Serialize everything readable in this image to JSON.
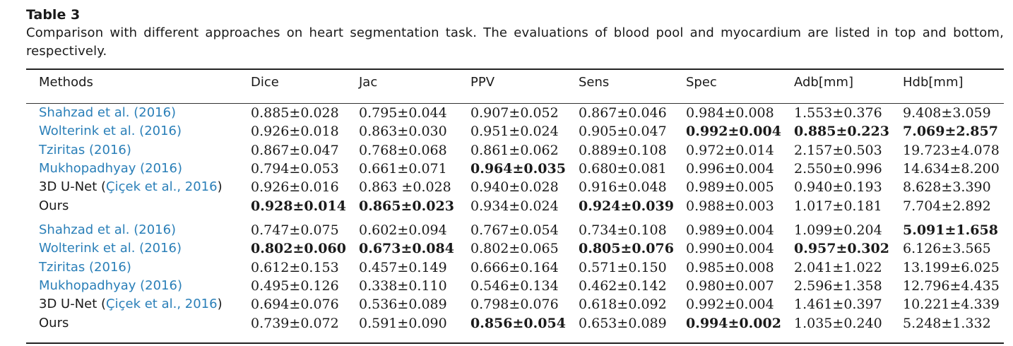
{
  "table": {
    "title": "Table 3",
    "caption": "Comparison with different approaches on heart segmentation task. The evaluations of blood pool and myocardium are listed in top and bottom, respectively.",
    "headers": [
      "Methods",
      "Dice",
      "Jac",
      "PPV",
      "Sens",
      "Spec",
      "Adb[mm]",
      "Hdb[mm]"
    ],
    "blood_pool": [
      {
        "method": "Shahzad et al. (2016)",
        "values": [
          "0.885±0.028",
          "0.795±0.044",
          "0.907±0.052",
          "0.867±0.046",
          "0.984±0.008",
          "1.553±0.376",
          "9.408±3.059"
        ],
        "bold": []
      },
      {
        "method": "Wolterink et al. (2016)",
        "values": [
          "0.926±0.018",
          "0.863±0.030",
          "0.951±0.024",
          "0.905±0.047",
          "0.992±0.004",
          "0.885±0.223",
          "7.069±2.857"
        ],
        "bold": [
          4,
          5,
          6
        ]
      },
      {
        "method": "Tziritas (2016)",
        "values": [
          "0.867±0.047",
          "0.768±0.068",
          "0.861±0.062",
          "0.889±0.108",
          "0.972±0.014",
          "2.157±0.503",
          "19.723±4.078"
        ],
        "bold": []
      },
      {
        "method": "Mukhopadhyay (2016)",
        "values": [
          "0.794±0.053",
          "0.661±0.071",
          "0.964±0.035",
          "0.680±0.081",
          "0.996±0.004",
          "2.550±0.996",
          "14.634±8.200"
        ],
        "bold": [
          2
        ]
      },
      {
        "method_prefix": "3D U-Net (",
        "method_link": "Çiçek et al., 2016",
        "method_suffix": ")",
        "values": [
          "0.926±0.016",
          "0.863 ±0.028",
          "0.940±0.028",
          "0.916±0.048",
          "0.989±0.005",
          "0.940±0.193",
          "8.628±3.390"
        ],
        "bold": []
      },
      {
        "method_plain": "Ours",
        "values": [
          "0.928±0.014",
          "0.865±0.023",
          "0.934±0.024",
          "0.924±0.039",
          "0.988±0.003",
          "1.017±0.181",
          "7.704±2.892"
        ],
        "bold": [
          0,
          1,
          3
        ]
      }
    ],
    "myocardium": [
      {
        "method": "Shahzad et al. (2016)",
        "values": [
          "0.747±0.075",
          "0.602±0.094",
          "0.767±0.054",
          "0.734±0.108",
          "0.989±0.004",
          "1.099±0.204",
          "5.091±1.658"
        ],
        "bold": [
          6
        ]
      },
      {
        "method": "Wolterink et al. (2016)",
        "values": [
          "0.802±0.060",
          "0.673±0.084",
          "0.802±0.065",
          "0.805±0.076",
          "0.990±0.004",
          "0.957±0.302",
          "6.126±3.565"
        ],
        "bold": [
          0,
          1,
          3,
          5
        ]
      },
      {
        "method": "Tziritas (2016)",
        "values": [
          "0.612±0.153",
          "0.457±0.149",
          "0.666±0.164",
          "0.571±0.150",
          "0.985±0.008",
          "2.041±1.022",
          "13.199±6.025"
        ],
        "bold": []
      },
      {
        "method": "Mukhopadhyay (2016)",
        "values": [
          "0.495±0.126",
          "0.338±0.110",
          "0.546±0.134",
          "0.462±0.142",
          "0.980±0.007",
          "2.596±1.358",
          "12.796±4.435"
        ],
        "bold": []
      },
      {
        "method_prefix": "3D U-Net (",
        "method_link": "Çiçek et al., 2016",
        "method_suffix": ")",
        "values": [
          "0.694±0.076",
          "0.536±0.089",
          "0.798±0.076",
          "0.618±0.092",
          "0.992±0.004",
          "1.461±0.397",
          "10.221±4.339"
        ],
        "bold": []
      },
      {
        "method_plain": "Ours",
        "values": [
          "0.739±0.072",
          "0.591±0.090",
          "0.856±0.054",
          "0.653±0.089",
          "0.994±0.002",
          "1.035±0.240",
          "5.248±1.332"
        ],
        "bold": [
          2,
          4
        ]
      }
    ]
  },
  "colors": {
    "link": "#2a7fb8",
    "text": "#1a1a1a"
  }
}
